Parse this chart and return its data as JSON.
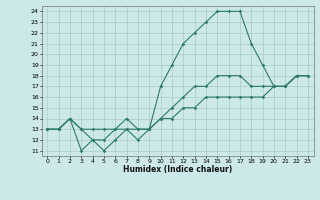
{
  "xlabel": "Humidex (Indice chaleur)",
  "bg_color": "#cce8e8",
  "grid_color": "#aacccc",
  "line_color": "#2d7a6a",
  "xlim": [
    -0.5,
    23.5
  ],
  "ylim": [
    10.5,
    24.5
  ],
  "xticks": [
    0,
    1,
    2,
    3,
    4,
    5,
    6,
    7,
    8,
    9,
    10,
    11,
    12,
    13,
    14,
    15,
    16,
    17,
    18,
    19,
    20,
    21,
    22,
    23
  ],
  "yticks": [
    11,
    12,
    13,
    14,
    15,
    16,
    17,
    18,
    19,
    20,
    21,
    22,
    23,
    24
  ],
  "series1_x": [
    0,
    1,
    2,
    3,
    4,
    5,
    6,
    7,
    8,
    9,
    10,
    11,
    12,
    13,
    14,
    15,
    16,
    17,
    18,
    19,
    20,
    21,
    22,
    23
  ],
  "series1_y": [
    13,
    13,
    14,
    11,
    12,
    11,
    12,
    13,
    12,
    13,
    17,
    19,
    21,
    22,
    23,
    24,
    24,
    24,
    21,
    19,
    17,
    17,
    18,
    18
  ],
  "series2_x": [
    0,
    1,
    2,
    3,
    4,
    5,
    6,
    7,
    8,
    9,
    10,
    11,
    12,
    13,
    14,
    15,
    16,
    17,
    18,
    19,
    20,
    21,
    22,
    23
  ],
  "series2_y": [
    13,
    13,
    14,
    13,
    12,
    12,
    13,
    13,
    13,
    13,
    14,
    15,
    16,
    17,
    17,
    18,
    18,
    18,
    17,
    17,
    17,
    17,
    18,
    18
  ],
  "series3_x": [
    0,
    1,
    2,
    3,
    4,
    5,
    6,
    7,
    8,
    9,
    10,
    11,
    12,
    13,
    14,
    15,
    16,
    17,
    18,
    19,
    20,
    21,
    22,
    23
  ],
  "series3_y": [
    13,
    13,
    14,
    13,
    13,
    13,
    13,
    14,
    13,
    13,
    14,
    14,
    15,
    15,
    16,
    16,
    16,
    16,
    16,
    16,
    17,
    17,
    18,
    18
  ],
  "tick_fontsize": 4.5,
  "xlabel_fontsize": 5.5,
  "lw": 0.8,
  "ms": 1.8
}
